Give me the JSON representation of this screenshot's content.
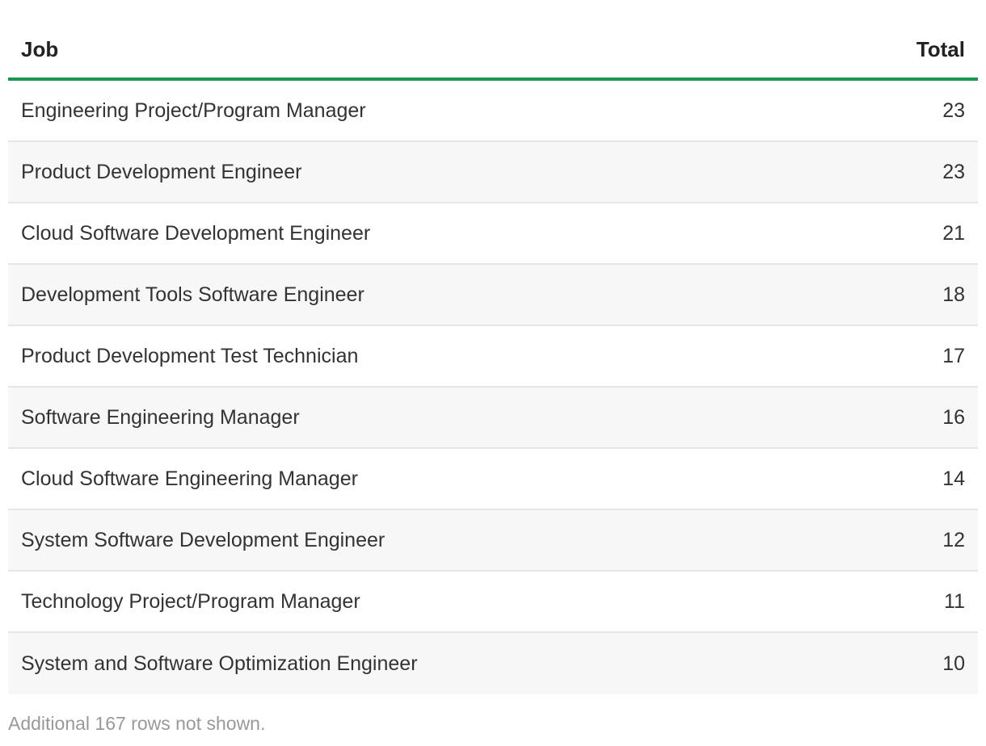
{
  "chart_data": {
    "type": "table",
    "columns": [
      "Job",
      "Total"
    ],
    "rows": [
      {
        "job": "Engineering Project/Program Manager",
        "total": 23
      },
      {
        "job": "Product Development Engineer",
        "total": 23
      },
      {
        "job": "Cloud Software Development Engineer",
        "total": 21
      },
      {
        "job": "Development Tools Software Engineer",
        "total": 18
      },
      {
        "job": "Product Development Test Technician",
        "total": 17
      },
      {
        "job": "Software Engineering Manager",
        "total": 16
      },
      {
        "job": "Cloud Software Engineering Manager",
        "total": 14
      },
      {
        "job": "System Software Development Engineer",
        "total": 12
      },
      {
        "job": "Technology Project/Program Manager",
        "total": 11
      },
      {
        "job": "System and Software Optimization Engineer",
        "total": 10
      }
    ],
    "footnote": "Additional 167 rows not shown."
  },
  "colors": {
    "header_rule": "#1a9850",
    "row_stripe": "#f7f7f7",
    "text": "#333333",
    "footnote_text": "#999999"
  }
}
